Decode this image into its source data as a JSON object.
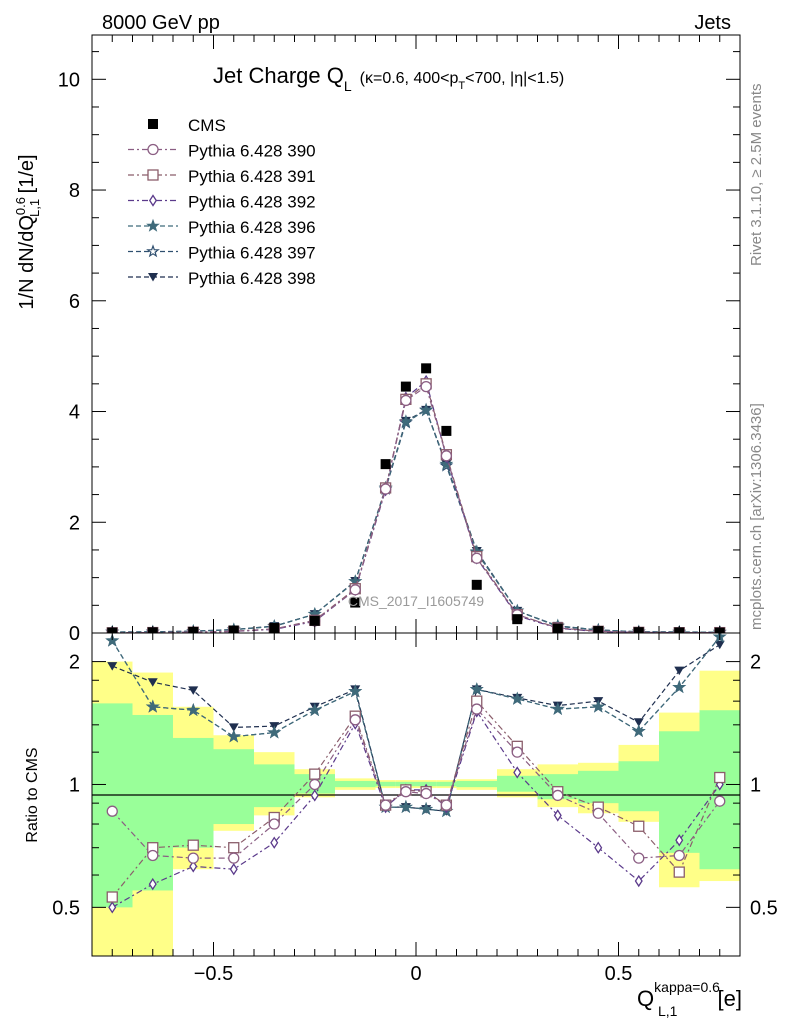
{
  "header": {
    "energy_label": "8000 GeV pp",
    "process_label": "Jets",
    "rivet_label": "Rivet 3.1.10, ≥ 2.5M events",
    "source_label": "mcplots.cern.ch [arXiv:1306.3436]",
    "analysis_id": "CMS_2017_I1605749"
  },
  "titles": {
    "main_prefix": "Jet Charge Q",
    "main_sub": "L",
    "cond_pre": "(κ=0.6, 400<p",
    "cond_sub": "T",
    "cond_post": "<700, |η|<1.5)",
    "ylabel_top_pre": "1/N dN/dQ",
    "ylabel_top_sup": "0.6",
    "ylabel_top_sub": "L,1",
    "ylabel_top_post": " [1/e]",
    "ylabel_bottom": "Ratio to CMS",
    "xlabel_pre": "Q",
    "xlabel_sup": "kappa=0.6",
    "xlabel_sub": "L,1",
    "xlabel_post": " [e]"
  },
  "colors": {
    "data": "#000000",
    "p390": "#8b5e83",
    "p391": "#8b5e6b",
    "p392": "#5b3a8b",
    "p396": "#3f6a7a",
    "p397": "#2f4f6f",
    "p398": "#1f2f4f",
    "band_inner": "#99ff99",
    "band_outer": "#ffff88"
  },
  "chart_data": [
    {
      "type": "scatter",
      "panel": "main",
      "xlim": [
        -0.8,
        0.8
      ],
      "ylim": [
        0,
        10.8
      ],
      "yticks": [
        0,
        2,
        4,
        6,
        8,
        10
      ],
      "legend_position": "top-left",
      "x": [
        -0.75,
        -0.65,
        -0.55,
        -0.45,
        -0.35,
        -0.25,
        -0.15,
        -0.075,
        -0.025,
        0.025,
        0.075,
        0.15,
        0.25,
        0.35,
        0.45,
        0.55,
        0.65,
        0.75
      ],
      "series": [
        {
          "name": "CMS",
          "key": "cms",
          "marker": "filled-square",
          "values": [
            0.008,
            0.012,
            0.02,
            0.045,
            0.09,
            0.22,
            0.55,
            3.05,
            4.45,
            4.78,
            3.65,
            0.87,
            0.25,
            0.08,
            0.035,
            0.015,
            0.01,
            0.007
          ]
        },
        {
          "name": "Pythia 6.428 390",
          "key": "p390",
          "marker": "open-circle",
          "values": [
            0.006,
            0.008,
            0.013,
            0.03,
            0.072,
            0.22,
            0.78,
            2.6,
            4.2,
            4.45,
            3.2,
            1.35,
            0.33,
            0.09,
            0.03,
            0.01,
            0.007,
            0.006
          ]
        },
        {
          "name": "Pythia 6.428 391",
          "key": "p391",
          "marker": "open-square",
          "values": [
            0.004,
            0.008,
            0.014,
            0.031,
            0.074,
            0.23,
            0.8,
            2.62,
            4.22,
            4.5,
            3.22,
            1.38,
            0.33,
            0.093,
            0.031,
            0.012,
            0.006,
            0.007
          ]
        },
        {
          "name": "Pythia 6.428 392",
          "key": "p392",
          "marker": "open-diamond",
          "values": [
            0.004,
            0.007,
            0.013,
            0.028,
            0.065,
            0.21,
            0.78,
            2.58,
            4.25,
            4.55,
            3.18,
            1.35,
            0.31,
            0.085,
            0.025,
            0.009,
            0.007,
            0.007
          ]
        },
        {
          "name": "Pythia 6.428 396",
          "key": "p396",
          "marker": "filled-star",
          "values": [
            0.018,
            0.019,
            0.03,
            0.059,
            0.12,
            0.34,
            0.93,
            2.62,
            3.82,
            4.02,
            3.05,
            1.47,
            0.4,
            0.13,
            0.054,
            0.021,
            0.017,
            0.016
          ]
        },
        {
          "name": "Pythia 6.428 397",
          "key": "p397",
          "marker": "open-star",
          "values": [
            0.018,
            0.018,
            0.03,
            0.059,
            0.122,
            0.34,
            0.93,
            2.6,
            3.8,
            4.03,
            3.02,
            1.45,
            0.4,
            0.12,
            0.054,
            0.02,
            0.017,
            0.016
          ]
        },
        {
          "name": "Pythia 6.428 398",
          "key": "p398",
          "marker": "filled-triangle-down",
          "values": [
            0.016,
            0.021,
            0.034,
            0.063,
            0.125,
            0.34,
            0.94,
            2.62,
            3.83,
            4.03,
            3.05,
            1.48,
            0.4,
            0.128,
            0.055,
            0.021,
            0.019,
            0.015
          ]
        }
      ]
    },
    {
      "type": "scatter",
      "panel": "ratio",
      "yscale": "log",
      "xlim": [
        -0.8,
        0.8
      ],
      "ylim": [
        0.38,
        2.35
      ],
      "yticks": [
        0.5,
        1,
        2
      ],
      "xticks": [
        -0.5,
        0,
        0.5
      ],
      "reference_line": 1,
      "x": [
        -0.75,
        -0.65,
        -0.55,
        -0.45,
        -0.35,
        -0.25,
        -0.15,
        -0.075,
        -0.025,
        0.025,
        0.075,
        0.15,
        0.25,
        0.35,
        0.45,
        0.55,
        0.65,
        0.75
      ],
      "bands": {
        "xlo": [
          -0.8,
          -0.7,
          -0.6,
          -0.5,
          -0.4,
          -0.3,
          -0.2,
          -0.1,
          -0.05,
          0.0,
          0.05,
          0.1,
          0.2,
          0.3,
          0.4,
          0.5,
          0.6,
          0.7
        ],
        "xhi": [
          -0.7,
          -0.6,
          -0.5,
          -0.4,
          -0.3,
          -0.2,
          -0.1,
          -0.05,
          0.0,
          0.05,
          0.1,
          0.2,
          0.3,
          0.4,
          0.5,
          0.6,
          0.7,
          0.8
        ],
        "outer_lo": [
          0.37,
          0.37,
          0.62,
          0.77,
          0.84,
          0.93,
          0.97,
          0.98,
          0.98,
          0.98,
          0.98,
          0.97,
          0.93,
          0.88,
          0.85,
          0.81,
          0.56,
          0.58
        ],
        "outer_hi": [
          2.0,
          1.88,
          1.55,
          1.32,
          1.2,
          1.09,
          1.035,
          1.025,
          1.025,
          1.025,
          1.025,
          1.03,
          1.09,
          1.12,
          1.13,
          1.25,
          1.5,
          1.9
        ],
        "inner_lo": [
          0.5,
          0.55,
          0.7,
          0.8,
          0.88,
          0.95,
          0.985,
          0.99,
          0.99,
          0.99,
          0.99,
          0.985,
          0.96,
          0.92,
          0.9,
          0.86,
          0.68,
          0.62
        ],
        "inner_hi": [
          1.58,
          1.48,
          1.3,
          1.22,
          1.12,
          1.06,
          1.02,
          1.015,
          1.015,
          1.015,
          1.015,
          1.02,
          1.05,
          1.06,
          1.08,
          1.14,
          1.35,
          1.52
        ]
      },
      "series": [
        {
          "name": "Pythia 6.428 390",
          "key": "p390",
          "values": [
            0.86,
            0.67,
            0.66,
            0.66,
            0.8,
            1.0,
            1.44,
            0.89,
            0.96,
            0.95,
            0.89,
            1.53,
            1.2,
            0.94,
            0.85,
            0.66,
            0.67,
            0.91
          ]
        },
        {
          "name": "Pythia 6.428 391",
          "key": "p391",
          "values": [
            0.53,
            0.7,
            0.71,
            0.7,
            0.83,
            1.06,
            1.47,
            0.89,
            0.97,
            0.96,
            0.89,
            1.6,
            1.24,
            0.96,
            0.88,
            0.79,
            0.61,
            1.04
          ]
        },
        {
          "name": "Pythia 6.428 392",
          "key": "p392",
          "values": [
            0.5,
            0.57,
            0.63,
            0.62,
            0.72,
            0.94,
            1.41,
            0.88,
            0.97,
            0.97,
            0.88,
            1.51,
            1.07,
            0.84,
            0.7,
            0.58,
            0.73,
            1.0
          ]
        },
        {
          "name": "Pythia 6.428 396",
          "key": "p396",
          "values": [
            2.25,
            1.55,
            1.52,
            1.31,
            1.34,
            1.52,
            1.69,
            0.88,
            0.88,
            0.87,
            0.86,
            1.71,
            1.62,
            1.53,
            1.55,
            1.35,
            1.73,
            2.3
          ]
        },
        {
          "name": "Pythia 6.428 397",
          "key": "p397",
          "values": [
            2.25,
            1.55,
            1.52,
            1.31,
            1.34,
            1.52,
            1.69,
            0.88,
            0.88,
            0.87,
            0.86,
            1.71,
            1.62,
            1.53,
            1.55,
            1.35,
            1.73,
            2.3
          ]
        },
        {
          "name": "Pythia 6.428 398",
          "key": "p398",
          "values": [
            1.95,
            1.78,
            1.7,
            1.38,
            1.39,
            1.55,
            1.71,
            0.88,
            0.88,
            0.87,
            0.86,
            1.71,
            1.63,
            1.56,
            1.6,
            1.42,
            1.9,
            2.2
          ]
        }
      ]
    }
  ]
}
